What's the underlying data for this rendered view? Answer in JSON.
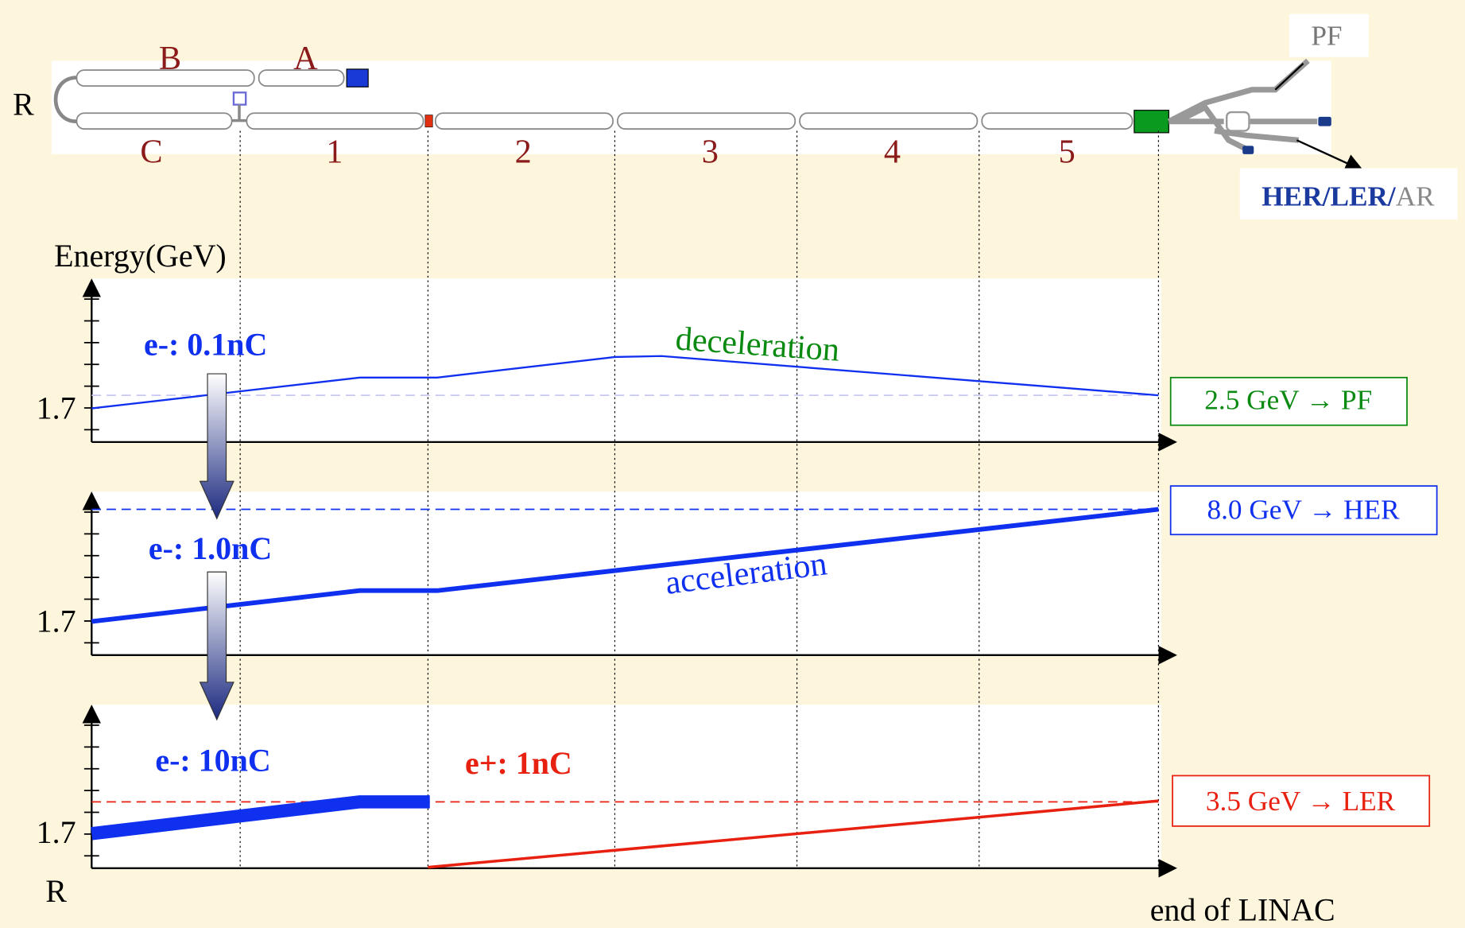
{
  "linac": {
    "ring_label": "R",
    "sections": [
      "B",
      "A",
      "C",
      "1",
      "2",
      "3",
      "4",
      "5"
    ],
    "pf": "PF",
    "her_ler": "HER/LER/",
    "ar": "AR"
  },
  "axis_label": "Energy(GeV)",
  "plots": [
    {
      "beam": "e-: 0.1nC",
      "process": "deceleration",
      "tick_label": "1.7",
      "destination": "2.5 GeV → PF"
    },
    {
      "beam": "e-: 1.0nC",
      "process": "acceleration",
      "tick_label": "1.7",
      "destination": "8.0 GeV → HER"
    },
    {
      "beam": "e-: 10nC",
      "beam2": "e+: 1nC",
      "tick_label": "1.7",
      "destination": "3.5 GeV → LER"
    }
  ],
  "bottom_label": "R",
  "end_label": "end of LINAC"
}
